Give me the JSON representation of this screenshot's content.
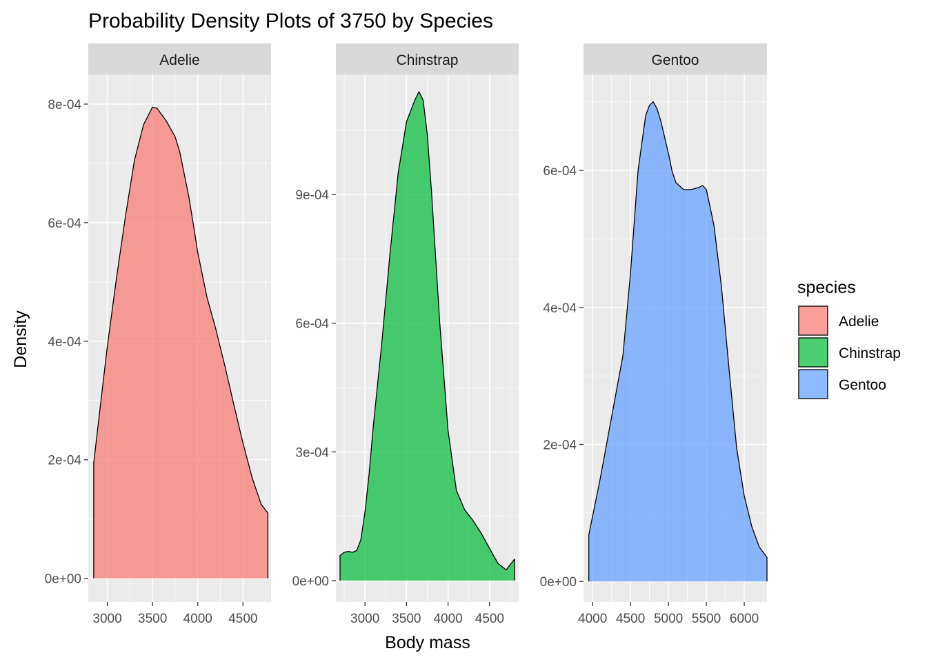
{
  "chart_data": {
    "type": "area",
    "title": "Probability Density Plots of 3750 by Species",
    "xlabel": "Body mass",
    "ylabel": "Density",
    "legend": {
      "title": "species",
      "placement": "right",
      "entries": [
        "Adelie",
        "Chinstrap",
        "Gentoo"
      ]
    },
    "grid": true,
    "facets": [
      {
        "name": "Adelie",
        "color": "#F8766D",
        "xlim": [
          2790,
          4810
        ],
        "ylim": [
          -4e-05,
          0.00085
        ],
        "xticks": [
          3000,
          3500,
          4000,
          4500
        ],
        "xtick_labels": [
          "3000",
          "3500",
          "4000",
          "4500"
        ],
        "yticks": [
          0,
          0.0002,
          0.0004,
          0.0006,
          0.0008
        ],
        "ytick_labels": [
          "0e+00",
          "2e-04",
          "4e-04",
          "6e-04",
          "8e-04"
        ],
        "x": [
          2850,
          2900,
          3000,
          3100,
          3200,
          3300,
          3400,
          3500,
          3550,
          3650,
          3750,
          3800,
          3900,
          3950,
          4000,
          4100,
          4200,
          4300,
          4400,
          4500,
          4600,
          4700,
          4775
        ],
        "values": [
          0.000195,
          0.00026,
          0.00039,
          0.000505,
          0.00061,
          0.000705,
          0.000765,
          0.000795,
          0.000793,
          0.000772,
          0.000745,
          0.00072,
          0.000645,
          0.000598,
          0.00055,
          0.000475,
          0.00042,
          0.000358,
          0.000292,
          0.000228,
          0.00017,
          0.000125,
          0.00011
        ]
      },
      {
        "name": "Chinstrap",
        "color": "#00BA38",
        "xlim": [
          2650,
          4850
        ],
        "ylim": [
          -5e-05,
          0.00118
        ],
        "xticks": [
          3000,
          3500,
          4000,
          4500
        ],
        "xtick_labels": [
          "3000",
          "3500",
          "4000",
          "4500"
        ],
        "yticks": [
          0,
          0.0003,
          0.0006,
          0.0009
        ],
        "ytick_labels": [
          "0e+00",
          "3e-04",
          "6e-04",
          "9e-04"
        ],
        "x": [
          2700,
          2750,
          2800,
          2850,
          2900,
          2950,
          3000,
          3050,
          3100,
          3200,
          3300,
          3400,
          3500,
          3600,
          3650,
          3700,
          3750,
          3800,
          3900,
          4000,
          4100,
          4200,
          4300,
          4400,
          4500,
          4600,
          4700,
          4800
        ],
        "values": [
          5.8e-05,
          6.6e-05,
          6.8e-05,
          6.6e-05,
          7e-05,
          9.5e-05,
          0.00016,
          0.00025,
          0.00036,
          0.00055,
          0.00076,
          0.00095,
          0.00107,
          0.00112,
          0.00114,
          0.00112,
          0.00104,
          0.00091,
          0.0006,
          0.00035,
          0.00021,
          0.000165,
          0.00014,
          0.00011,
          7.5e-05,
          4e-05,
          2.5e-05,
          5e-05
        ]
      },
      {
        "name": "Gentoo",
        "color": "#619CFF",
        "xlim": [
          3880,
          6300
        ],
        "ylim": [
          -3e-05,
          0.00074
        ],
        "xticks": [
          4000,
          4500,
          5000,
          5500,
          6000
        ],
        "xtick_labels": [
          "4000",
          "4500",
          "5000",
          "5500",
          "6000"
        ],
        "yticks": [
          0,
          0.0002,
          0.0004,
          0.0006
        ],
        "ytick_labels": [
          "0e+00",
          "2e-04",
          "4e-04",
          "6e-04"
        ],
        "x": [
          3950,
          4100,
          4200,
          4300,
          4400,
          4500,
          4600,
          4700,
          4750,
          4800,
          4850,
          4900,
          5000,
          5050,
          5100,
          5200,
          5300,
          5400,
          5450,
          5500,
          5600,
          5700,
          5800,
          5900,
          6000,
          6100,
          6200,
          6300
        ],
        "values": [
          6.8e-05,
          0.00015,
          0.00021,
          0.00027,
          0.00033,
          0.00045,
          0.0006,
          0.00068,
          0.000695,
          0.0007,
          0.00069,
          0.000672,
          0.000625,
          0.000598,
          0.000582,
          0.000572,
          0.000572,
          0.000575,
          0.000578,
          0.000572,
          0.00052,
          0.00043,
          0.00031,
          0.000195,
          0.000125,
          8e-05,
          5e-05,
          3.5e-05
        ]
      }
    ]
  }
}
